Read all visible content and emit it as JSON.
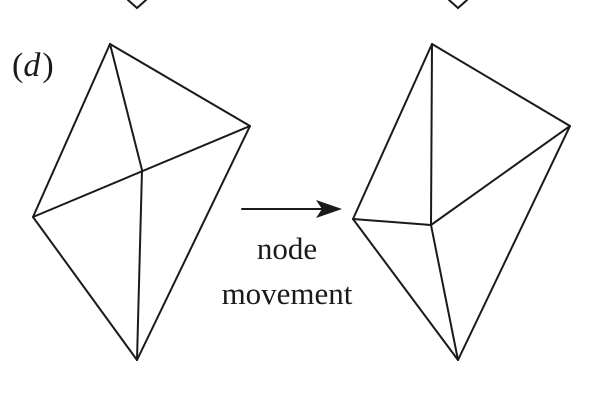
{
  "panel_label_paren_open": "(",
  "panel_label_letter": "d",
  "panel_label_paren_close": ")",
  "caption_line_1": "node",
  "caption_line_2": "movement"
}
